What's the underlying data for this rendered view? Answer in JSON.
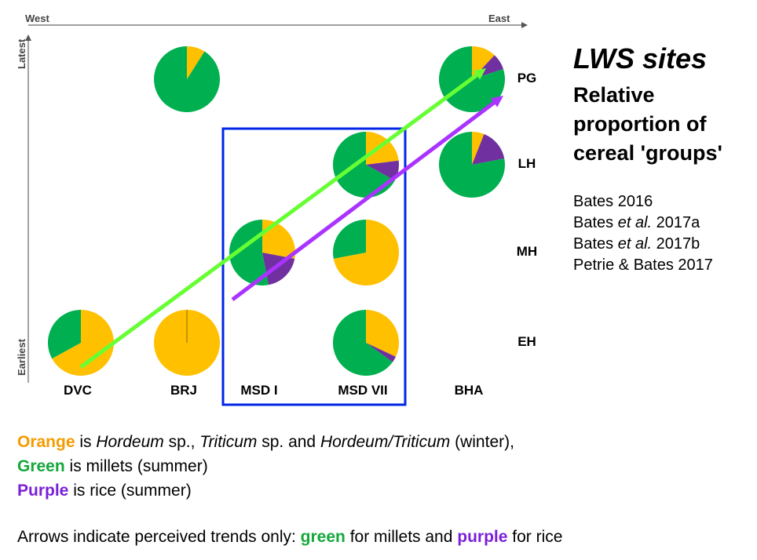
{
  "chart_data": {
    "type": "pie-grid",
    "x_axis": {
      "start_label": "West",
      "end_label": "East",
      "categories": [
        "DVC",
        "BRJ",
        "MSD I",
        "MSD VII",
        "BHA"
      ]
    },
    "y_axis": {
      "start_label": "Earliest",
      "end_label": "Latest",
      "categories": [
        "EH",
        "MH",
        "LH",
        "PG"
      ]
    },
    "colors": {
      "orange": "#ffc000",
      "green": "#00b050",
      "purple": "#7030a0",
      "arrow_green": "#66ff33",
      "arrow_purple": "#aa33ff",
      "box": "#0026e6"
    },
    "pies": [
      {
        "site": "DVC",
        "period": "EH",
        "orange": 0.67,
        "green": 0.33,
        "purple": 0.0
      },
      {
        "site": "BRJ",
        "period": "EH",
        "orange": 1.0,
        "green": 0.0,
        "purple": 0.0
      },
      {
        "site": "MSD VII",
        "period": "EH",
        "orange": 0.32,
        "green": 0.65,
        "purple": 0.03
      },
      {
        "site": "MSD I",
        "period": "MH",
        "orange": 0.28,
        "green": 0.53,
        "purple": 0.19
      },
      {
        "site": "MSD VII",
        "period": "MH",
        "orange": 0.72,
        "green": 0.28,
        "purple": 0.0
      },
      {
        "site": "MSD VII",
        "period": "LH",
        "orange": 0.23,
        "green": 0.67,
        "purple": 0.1
      },
      {
        "site": "BHA",
        "period": "LH",
        "orange": 0.06,
        "green": 0.78,
        "purple": 0.16
      },
      {
        "site": "BRJ",
        "period": "PG",
        "orange": 0.09,
        "green": 0.91,
        "purple": 0.0
      },
      {
        "site": "BHA",
        "period": "PG",
        "orange": 0.12,
        "green": 0.8,
        "purple": 0.08
      }
    ],
    "highlight_box": {
      "sites": [
        "MSD I",
        "MSD VII"
      ]
    },
    "trend_arrows": [
      {
        "color": "green",
        "from": {
          "site": "DVC",
          "period": "EH"
        },
        "to": {
          "site": "BHA",
          "period": "PG"
        }
      },
      {
        "color": "purple",
        "from": {
          "site": "MSD I",
          "period": "EH"
        },
        "to": {
          "site": "BHA",
          "period": "PG"
        }
      }
    ]
  },
  "title": {
    "line1": "LWS sites",
    "line2": "Relative proportion of cereal 'groups'"
  },
  "references": [
    {
      "pre": "Bates 2016",
      "ital": "",
      "post": ""
    },
    {
      "pre": "Bates ",
      "ital": "et al.",
      "post": " 2017a"
    },
    {
      "pre": "Bates ",
      "ital": "et al.",
      "post": " 2017b"
    },
    {
      "pre": "Petrie & Bates 2017",
      "ital": "",
      "post": ""
    }
  ],
  "legend": {
    "orange": {
      "key": "Orange",
      "t1": " is ",
      "i1": "Hordeum",
      "t2": " sp., ",
      "i2": "Triticum",
      "t3": " sp. and ",
      "i3": "Hordeum/Triticum",
      "t4": " (winter),"
    },
    "green": {
      "key": "Green",
      "text": " is millets (summer)"
    },
    "purple": {
      "key": "Purple",
      "text": " is rice (summer)"
    }
  },
  "arrow_note": {
    "text1": "Arrows indicate perceived trends only: ",
    "green": "green",
    "text2": " for millets and ",
    "purple": "purple",
    "text3": " for rice"
  }
}
